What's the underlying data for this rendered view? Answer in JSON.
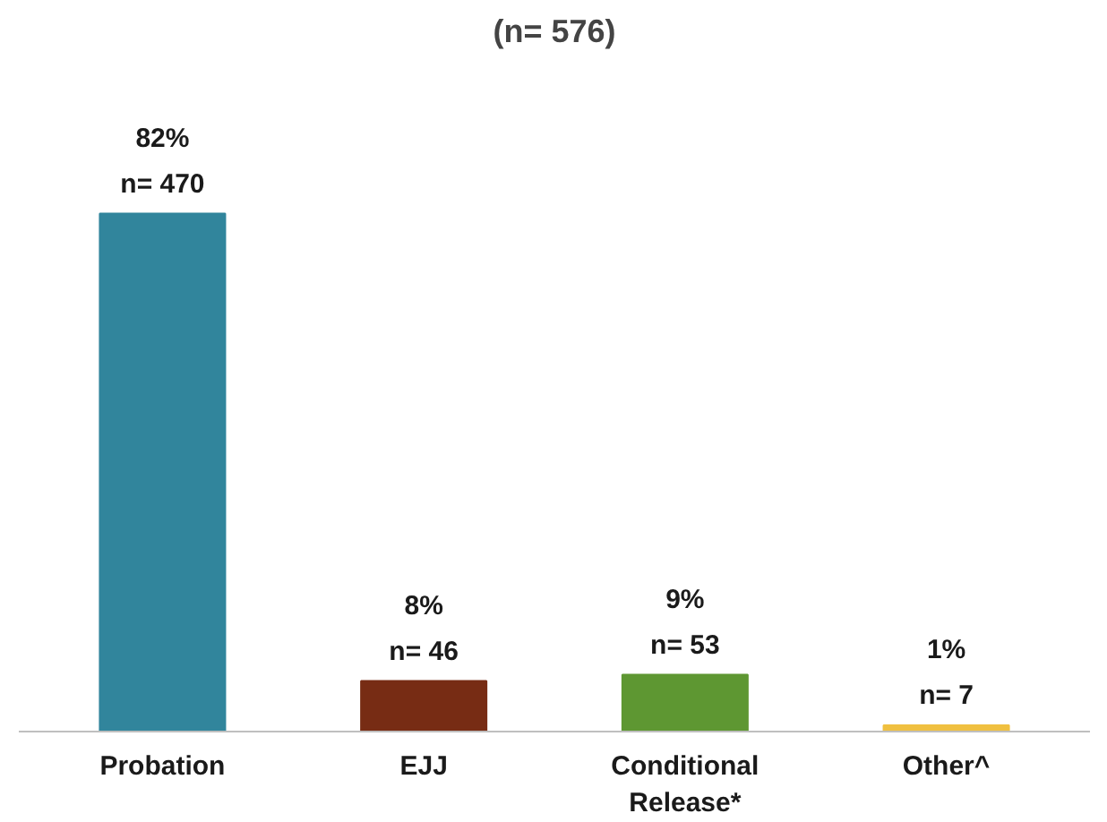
{
  "chart_data": {
    "type": "bar",
    "title": "(n= 576)",
    "categories": [
      "Probation",
      "EJJ",
      "Conditional Release*",
      "Other^"
    ],
    "values": [
      82,
      8,
      9,
      1
    ],
    "colors": [
      "#31859c",
      "#772c14",
      "#5e9732",
      "#f0c040"
    ],
    "value_labels": [
      "82%\nn= 470",
      "8%\nn= 46",
      "9%\nn= 53",
      "1%\nn= 7"
    ],
    "grid": false
  }
}
